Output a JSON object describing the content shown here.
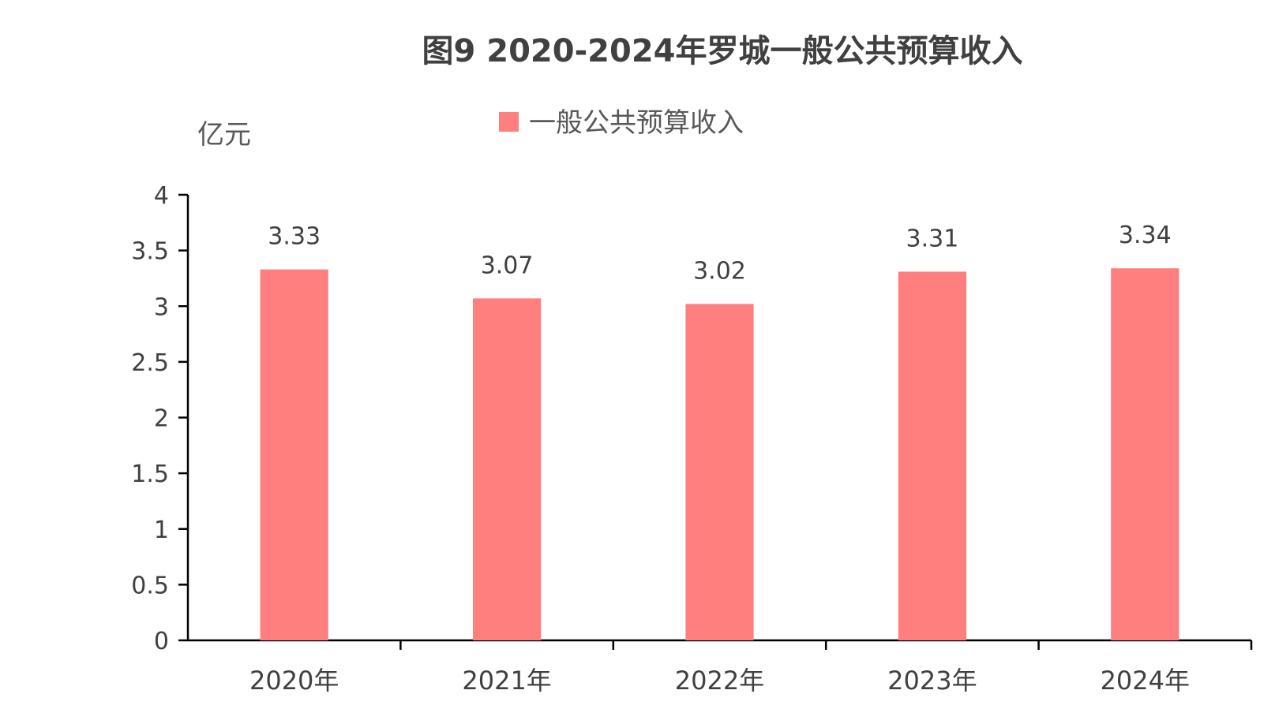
{
  "chart_data": {
    "type": "bar",
    "title": "图9  2020-2024年罗城一般公共预算收入",
    "unit_label": "亿元",
    "categories": [
      "2020年",
      "2021年",
      "2022年",
      "2023年",
      "2024年"
    ],
    "series": [
      {
        "name": "一般公共预算收入",
        "values": [
          3.33,
          3.07,
          3.02,
          3.31,
          3.34
        ],
        "color": "#ff7f7f"
      }
    ],
    "ylim": [
      0,
      4
    ],
    "yticks": [
      0,
      0.5,
      1,
      1.5,
      2,
      2.5,
      3,
      3.5,
      4
    ],
    "ytick_labels": [
      "0",
      "0.5",
      "1",
      "1.5",
      "2",
      "2.5",
      "3",
      "3.5",
      "4"
    ],
    "data_labels": [
      "3.33",
      "3.07",
      "3.02",
      "3.31",
      "3.34"
    ],
    "legend_position": "top-center",
    "grid": false,
    "axis_color": "#000000"
  }
}
